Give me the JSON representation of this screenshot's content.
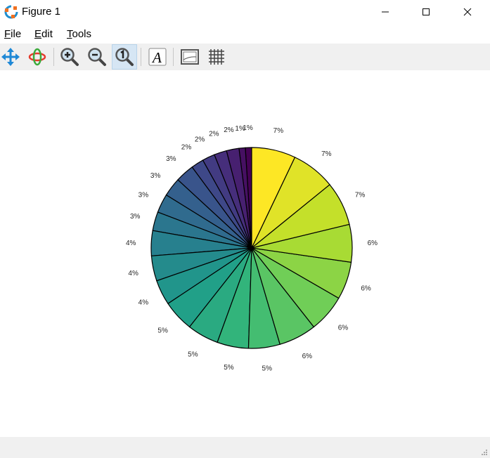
{
  "window": {
    "title": "Figure 1",
    "minimize_icon": "minimize-icon",
    "maximize_icon": "maximize-icon",
    "close_icon": "close-icon"
  },
  "menu": [
    {
      "label_u": "F",
      "label_rest": "ile"
    },
    {
      "label_u": "E",
      "label_rest": "dit"
    },
    {
      "label_u": "T",
      "label_rest": "ools"
    }
  ],
  "toolbar": {
    "tools": [
      "pan-icon",
      "rotate-icon",
      "zoom-in-icon",
      "zoom-out-icon",
      "zoom-reset-icon",
      "text-icon",
      "axes-icon",
      "grid-icon"
    ],
    "active_tool": "zoom-reset-icon"
  },
  "chart_data": {
    "type": "pie",
    "values": [
      1,
      1,
      2,
      2,
      2,
      2,
      3,
      3,
      3,
      3,
      4,
      4,
      4,
      5,
      5,
      5,
      5,
      6,
      6,
      6,
      6,
      7,
      7,
      7
    ],
    "labels": [
      "1%",
      "1%",
      "2%",
      "2%",
      "2%",
      "2%",
      "3%",
      "3%",
      "3%",
      "3%",
      "4%",
      "4%",
      "4%",
      "5%",
      "5%",
      "5%",
      "5%",
      "6%",
      "6%",
      "6%",
      "6%",
      "7%",
      "7%",
      "7%"
    ],
    "start_angle_deg": 90,
    "direction": "counterclockwise",
    "colormap": "viridis",
    "edge_color": "#000000"
  }
}
